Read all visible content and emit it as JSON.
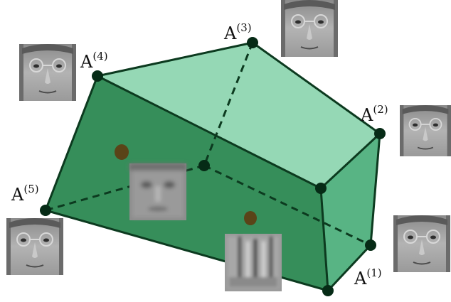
{
  "vertex_labels": {
    "a1": {
      "base": "A",
      "sup": "(1)"
    },
    "a2": {
      "base": "A",
      "sup": "(2)"
    },
    "a3": {
      "base": "A",
      "sup": "(3)"
    },
    "a4": {
      "base": "A",
      "sup": "(4)"
    },
    "a5": {
      "base": "A",
      "sup": "(5)"
    }
  },
  "colors": {
    "top_face": "#8fd6b1",
    "front_face": "#2f8a55",
    "side_face": "#4fb07d",
    "edge": "#0c3a1f",
    "vertex": "#062b16",
    "interior_point": "#5a4418"
  },
  "icons": {
    "face_photos": "grayscale-face-photo",
    "blurred_patches": "blurred-face-patch"
  }
}
